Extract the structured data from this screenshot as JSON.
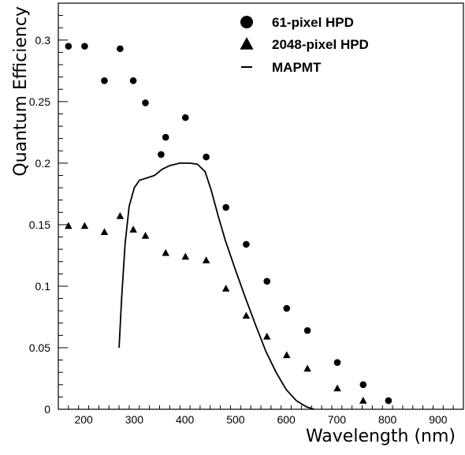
{
  "chart_data": {
    "type": "scatter",
    "xlabel": "Wavelength (nm)",
    "ylabel": "Quantum Efficiency",
    "xlim": [
      150,
      950
    ],
    "ylim": [
      0,
      0.33
    ],
    "x_ticks": [
      200,
      300,
      400,
      500,
      600,
      700,
      800,
      900
    ],
    "x_tick_labels": [
      "200",
      "300",
      "400",
      "500",
      "600",
      "700",
      "800",
      "900"
    ],
    "y_ticks": [
      0,
      0.05,
      0.1,
      0.15,
      0.2,
      0.25,
      0.3
    ],
    "y_tick_labels": [
      "0",
      "0.05",
      "0.1",
      "0.15",
      "0.2",
      "0.25",
      "0.3"
    ],
    "grid": false,
    "legend_position": "top-right",
    "series": [
      {
        "name": "61-pixel HPD",
        "marker": "circle",
        "color": "#000000",
        "points": [
          [
            170,
            0.295
          ],
          [
            202,
            0.295
          ],
          [
            241,
            0.267
          ],
          [
            272,
            0.293
          ],
          [
            298,
            0.267
          ],
          [
            322,
            0.249
          ],
          [
            353,
            0.207
          ],
          [
            362,
            0.221
          ],
          [
            401,
            0.237
          ],
          [
            442,
            0.205
          ],
          [
            481,
            0.164
          ],
          [
            521,
            0.134
          ],
          [
            562,
            0.104
          ],
          [
            601,
            0.082
          ],
          [
            642,
            0.064
          ],
          [
            701,
            0.038
          ],
          [
            752,
            0.02
          ],
          [
            802,
            0.007
          ]
        ]
      },
      {
        "name": "2048-pixel HPD",
        "marker": "triangle",
        "color": "#000000",
        "points": [
          [
            170,
            0.149
          ],
          [
            202,
            0.149
          ],
          [
            241,
            0.144
          ],
          [
            272,
            0.157
          ],
          [
            298,
            0.146
          ],
          [
            322,
            0.141
          ],
          [
            362,
            0.127
          ],
          [
            401,
            0.124
          ],
          [
            442,
            0.121
          ],
          [
            481,
            0.098
          ],
          [
            521,
            0.076
          ],
          [
            562,
            0.059
          ],
          [
            601,
            0.044
          ],
          [
            642,
            0.033
          ],
          [
            701,
            0.017
          ],
          [
            752,
            0.007
          ]
        ]
      },
      {
        "name": "MAPMT",
        "marker": "line",
        "color": "#000000",
        "points": [
          [
            270,
            0.05
          ],
          [
            275,
            0.09
          ],
          [
            282,
            0.135
          ],
          [
            290,
            0.165
          ],
          [
            300,
            0.18
          ],
          [
            310,
            0.186
          ],
          [
            325,
            0.188
          ],
          [
            340,
            0.19
          ],
          [
            355,
            0.195
          ],
          [
            370,
            0.198
          ],
          [
            390,
            0.2
          ],
          [
            410,
            0.2
          ],
          [
            425,
            0.199
          ],
          [
            440,
            0.193
          ],
          [
            452,
            0.178
          ],
          [
            465,
            0.158
          ],
          [
            480,
            0.137
          ],
          [
            500,
            0.113
          ],
          [
            520,
            0.09
          ],
          [
            540,
            0.068
          ],
          [
            560,
            0.047
          ],
          [
            580,
            0.03
          ],
          [
            600,
            0.016
          ],
          [
            620,
            0.007
          ],
          [
            640,
            0.002
          ],
          [
            655,
            0.0
          ]
        ]
      }
    ]
  }
}
